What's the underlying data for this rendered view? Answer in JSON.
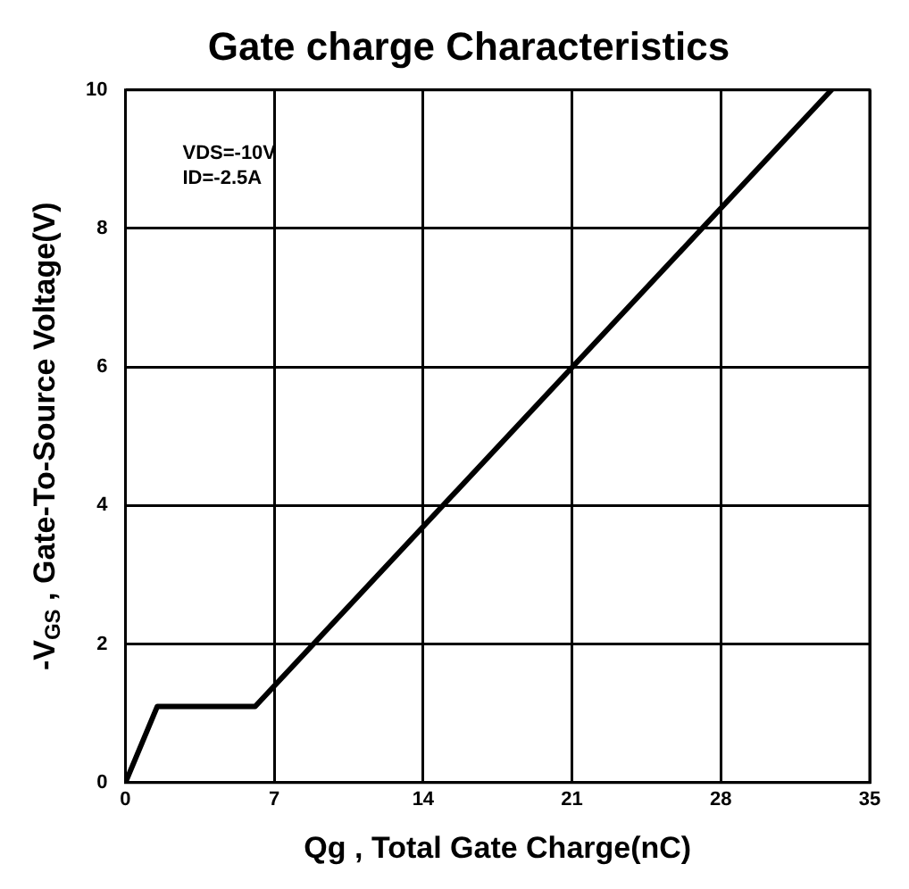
{
  "chart_data": {
    "type": "line",
    "title": "Gate charge Characteristics",
    "xlabel": "Qg , Total Gate Charge(nC)",
    "ylabel": "-V$_{GS}$ , Gate-To-Source Voltage(V)",
    "annotations": [
      "VDS=-10V",
      "ID=-2.5A"
    ],
    "x": [
      0,
      1.5,
      6.1,
      33.2
    ],
    "series": [
      {
        "color": "#000000",
        "values": [
          0,
          1.1,
          1.1,
          10
        ]
      }
    ],
    "xlim": [
      0,
      35
    ],
    "xticks": [
      0,
      7,
      14,
      21,
      28,
      35
    ],
    "ylim": [
      0,
      10
    ],
    "yticks": [
      0,
      2,
      4,
      6,
      8,
      10
    ],
    "grid": true,
    "legend": false,
    "marker": "none",
    "line_style": "solid"
  }
}
